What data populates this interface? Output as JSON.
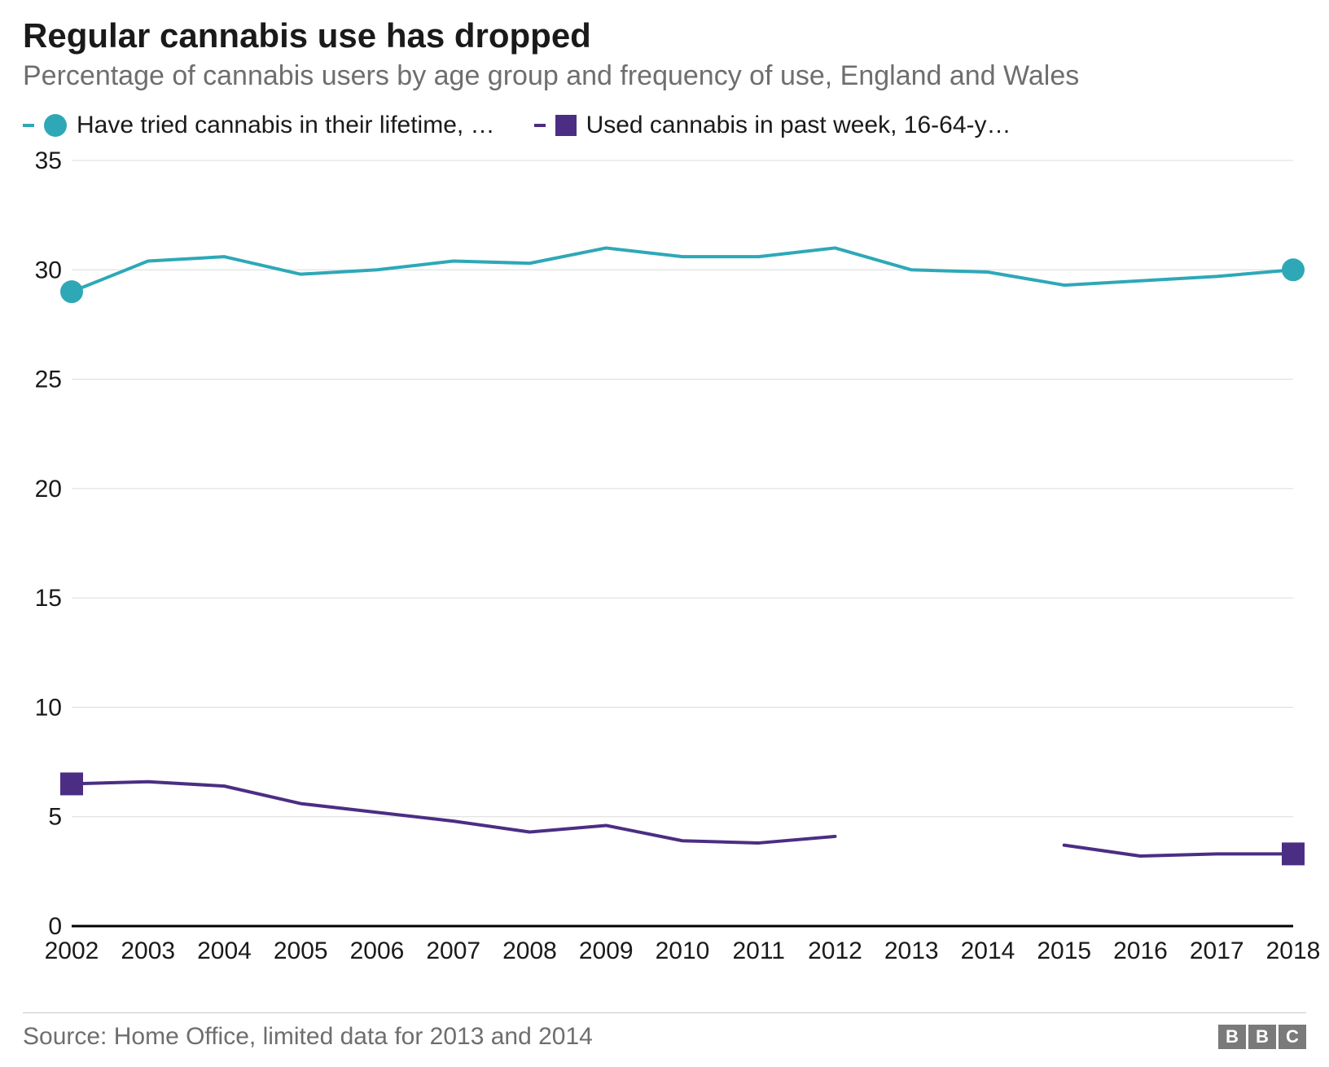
{
  "title": "Regular cannabis use has dropped",
  "subtitle": "Percentage of cannabis users by age group and frequency of use, England and Wales",
  "legend": {
    "series1": {
      "label": "Have tried cannabis in their lifetime, …",
      "marker": "circle",
      "color": "#2ea8b7"
    },
    "series2": {
      "label": "Used cannabis in past week, 16-64-y…",
      "marker": "square",
      "color": "#4b2e83"
    }
  },
  "chart": {
    "type": "line",
    "background_color": "#ffffff",
    "grid_color": "#dcdcdc",
    "baseline_color": "#000000",
    "x_years": [
      2002,
      2003,
      2004,
      2005,
      2006,
      2007,
      2008,
      2009,
      2010,
      2011,
      2012,
      2013,
      2014,
      2015,
      2016,
      2017,
      2018
    ],
    "ylim": [
      0,
      35
    ],
    "ytick_step": 5,
    "y_ticks": [
      0,
      5,
      10,
      15,
      20,
      25,
      30,
      35
    ],
    "label_fontsize": 30,
    "title_fontsize": 42,
    "subtitle_fontsize": 34,
    "line_width": 4,
    "marker_size": 14,
    "series1": {
      "color": "#2ea8b7",
      "marker": "circle",
      "x": [
        2002,
        2003,
        2004,
        2005,
        2006,
        2007,
        2008,
        2009,
        2010,
        2011,
        2012,
        2013,
        2014,
        2015,
        2016,
        2017,
        2018
      ],
      "y": [
        29.0,
        30.4,
        30.6,
        29.8,
        30.0,
        30.4,
        30.3,
        31.0,
        30.6,
        30.6,
        31.0,
        30.0,
        29.9,
        29.3,
        29.5,
        29.7,
        30.0
      ],
      "endpoint_markers": true
    },
    "series2_a": {
      "color": "#4b2e83",
      "marker": "square",
      "x": [
        2002,
        2003,
        2004,
        2005,
        2006,
        2007,
        2008,
        2009,
        2010,
        2011,
        2012
      ],
      "y": [
        6.5,
        6.6,
        6.4,
        5.6,
        5.2,
        4.8,
        4.3,
        4.6,
        3.9,
        3.8,
        4.1
      ],
      "start_marker": true
    },
    "series2_b": {
      "color": "#4b2e83",
      "marker": "square",
      "x": [
        2015,
        2016,
        2017,
        2018
      ],
      "y": [
        3.7,
        3.2,
        3.3,
        3.3
      ],
      "end_marker": true
    }
  },
  "source": "Source: Home Office, limited data for 2013 and 2014",
  "logo": {
    "letters": [
      "B",
      "B",
      "C"
    ],
    "box_bg": "#7a7a7a",
    "box_fg": "#ffffff"
  }
}
